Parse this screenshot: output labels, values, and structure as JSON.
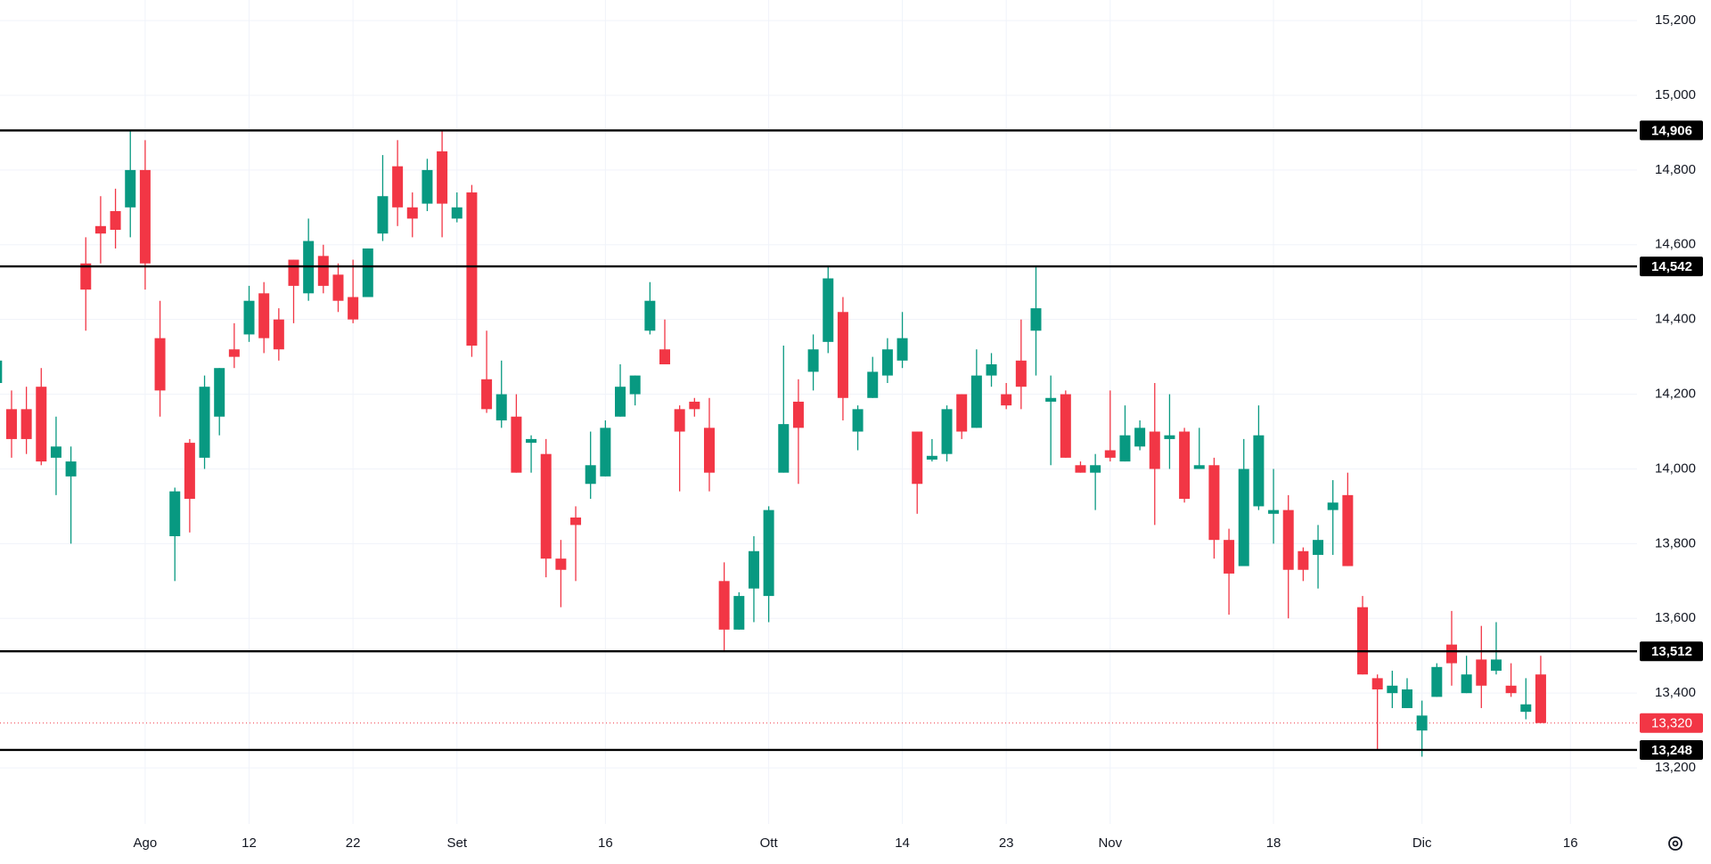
{
  "chart_data": {
    "type": "candlestick",
    "categories": [
      null,
      null,
      null,
      null,
      null,
      null,
      null,
      null,
      null,
      null,
      "Ago",
      null,
      null,
      null,
      null,
      null,
      null,
      "12",
      null,
      null,
      null,
      null,
      null,
      null,
      "22",
      null,
      null,
      null,
      null,
      null,
      null,
      "Set",
      null,
      null,
      null,
      null,
      null,
      null,
      null,
      null,
      null,
      "16",
      null,
      null,
      null,
      null,
      null,
      null,
      null,
      null,
      null,
      null,
      "Ott",
      null,
      null,
      null,
      null,
      null,
      null,
      null,
      null,
      "14",
      null,
      null,
      null,
      null,
      null,
      null,
      "23",
      null,
      null,
      null,
      null,
      null,
      null,
      "Nov",
      null,
      null,
      null,
      null,
      null,
      null,
      null,
      null,
      null,
      null,
      "18",
      null,
      null,
      null,
      null,
      null,
      null,
      null,
      null,
      null,
      "Dic",
      null,
      null,
      null,
      null,
      null,
      null,
      null,
      null,
      null,
      "16"
    ],
    "open": [
      14230,
      14160,
      14160,
      14220,
      14030,
      13980,
      14550,
      14650,
      14690,
      14700,
      14800,
      14350,
      13820,
      14070,
      14030,
      14140,
      14320,
      14360,
      14470,
      14400,
      14560,
      14470,
      14570,
      14520,
      14460,
      14460,
      14630,
      14810,
      14700,
      14710,
      14850,
      14670,
      14740,
      14240,
      14130,
      14140,
      14070,
      14040,
      13760,
      13870,
      13960,
      13980,
      14140,
      14200,
      14370,
      14320,
      14160,
      14180,
      14110,
      13700,
      13570,
      13680,
      13660,
      13990,
      14180,
      14260,
      14340,
      14420,
      14100,
      14190,
      14250,
      14290,
      14100,
      14025,
      14040,
      14200,
      14110,
      14250,
      14200,
      14290,
      14370,
      14180,
      14200,
      14010,
      13990,
      14050,
      14020,
      14060,
      14100,
      14080,
      14100,
      14000,
      14010,
      13810,
      13740,
      13900,
      13880,
      13890,
      13780,
      13770,
      13890,
      13930,
      13630,
      13440,
      13400,
      13360,
      13300,
      13390,
      13530,
      13400,
      13490,
      13460,
      13420,
      13350,
      13450,
      null,
      null
    ],
    "high": [
      14300,
      14210,
      14220,
      14270,
      14140,
      14060,
      14620,
      14730,
      14750,
      14906,
      14880,
      14450,
      13950,
      14080,
      14250,
      14270,
      14390,
      14490,
      14500,
      14430,
      14560,
      14670,
      14600,
      14550,
      14560,
      14590,
      14840,
      14880,
      14740,
      14830,
      14906,
      14740,
      14760,
      14370,
      14290,
      14200,
      14090,
      14080,
      13810,
      13900,
      14100,
      14130,
      14280,
      14250,
      14500,
      14400,
      14170,
      14190,
      14190,
      13750,
      13670,
      13820,
      13900,
      14330,
      14240,
      14360,
      14540,
      14460,
      14170,
      14300,
      14350,
      14420,
      14100,
      14080,
      14170,
      14200,
      14320,
      14310,
      14230,
      14400,
      14542,
      14250,
      14210,
      14020,
      14040,
      14210,
      14170,
      14130,
      14230,
      14200,
      14110,
      14110,
      14030,
      13840,
      14080,
      14170,
      14000,
      13930,
      13790,
      13850,
      13970,
      13990,
      13660,
      13450,
      13460,
      13440,
      13380,
      13480,
      13620,
      13500,
      13580,
      13590,
      13480,
      13440,
      13500,
      null,
      null
    ],
    "low": [
      14220,
      14030,
      14040,
      14010,
      13930,
      13800,
      14370,
      14550,
      14590,
      14620,
      14480,
      14140,
      13700,
      13830,
      14000,
      14090,
      14270,
      14340,
      14310,
      14290,
      14390,
      14450,
      14470,
      14420,
      14390,
      14460,
      14610,
      14650,
      14620,
      14690,
      14620,
      14660,
      14300,
      14150,
      14110,
      13990,
      13990,
      13710,
      13630,
      13700,
      13920,
      13980,
      14140,
      14170,
      14360,
      14280,
      13940,
      14140,
      13940,
      13512,
      13570,
      13590,
      13590,
      13990,
      13960,
      14210,
      14310,
      14130,
      14050,
      14190,
      14230,
      14270,
      13880,
      14020,
      14020,
      14080,
      14110,
      14220,
      14160,
      14160,
      14250,
      14010,
      14030,
      13990,
      13890,
      14020,
      14020,
      14050,
      13850,
      14000,
      13910,
      14000,
      13760,
      13610,
      13740,
      13890,
      13800,
      13600,
      13700,
      13680,
      13770,
      13740,
      13450,
      13248,
      13360,
      13360,
      13230,
      13390,
      13420,
      13400,
      13360,
      13450,
      13390,
      13330,
      13320,
      null,
      null
    ],
    "close": [
      14290,
      14080,
      14080,
      14020,
      14060,
      14020,
      14480,
      14630,
      14640,
      14800,
      14550,
      14210,
      13940,
      13920,
      14220,
      14270,
      14300,
      14450,
      14350,
      14320,
      14490,
      14610,
      14490,
      14450,
      14400,
      14590,
      14730,
      14700,
      14670,
      14800,
      14710,
      14700,
      14330,
      14160,
      14200,
      13990,
      14080,
      13760,
      13730,
      13850,
      14010,
      14110,
      14220,
      14250,
      14450,
      14280,
      14100,
      14160,
      13990,
      13570,
      13660,
      13780,
      13890,
      14120,
      14110,
      14320,
      14510,
      14190,
      14160,
      14260,
      14320,
      14350,
      13960,
      14035,
      14160,
      14100,
      14250,
      14280,
      14170,
      14220,
      14430,
      14190,
      14030,
      13990,
      14010,
      14030,
      14090,
      14110,
      14000,
      14090,
      13920,
      14010,
      13810,
      13720,
      14000,
      14090,
      13890,
      13730,
      13730,
      13810,
      13910,
      13740,
      13450,
      13410,
      13420,
      13410,
      13340,
      13470,
      13480,
      13450,
      13420,
      13490,
      13400,
      13370,
      13320,
      null,
      null
    ],
    "up_color": "#089981",
    "down_color": "#f23645",
    "ylim": [
      13050,
      15255
    ],
    "yticks": [
      {
        "value": 13200,
        "label": "13,200"
      },
      {
        "value": 13400,
        "label": "13,400"
      },
      {
        "value": 13600,
        "label": "13,600"
      },
      {
        "value": 13800,
        "label": "13,800"
      },
      {
        "value": 14000,
        "label": "14,000"
      },
      {
        "value": 14200,
        "label": "14,200"
      },
      {
        "value": 14400,
        "label": "14,400"
      },
      {
        "value": 14600,
        "label": "14,600"
      },
      {
        "value": 14800,
        "label": "14,800"
      },
      {
        "value": 15000,
        "label": "15,000"
      },
      {
        "value": 15200,
        "label": "15,200"
      }
    ],
    "grid": true,
    "levels": [
      {
        "value": 14906,
        "label": "14,906"
      },
      {
        "value": 14542,
        "label": "14,542"
      },
      {
        "value": 13512,
        "label": "13,512"
      },
      {
        "value": 13248,
        "label": "13,248"
      }
    ],
    "last_price": {
      "value": 13320,
      "label": "13,320"
    }
  }
}
